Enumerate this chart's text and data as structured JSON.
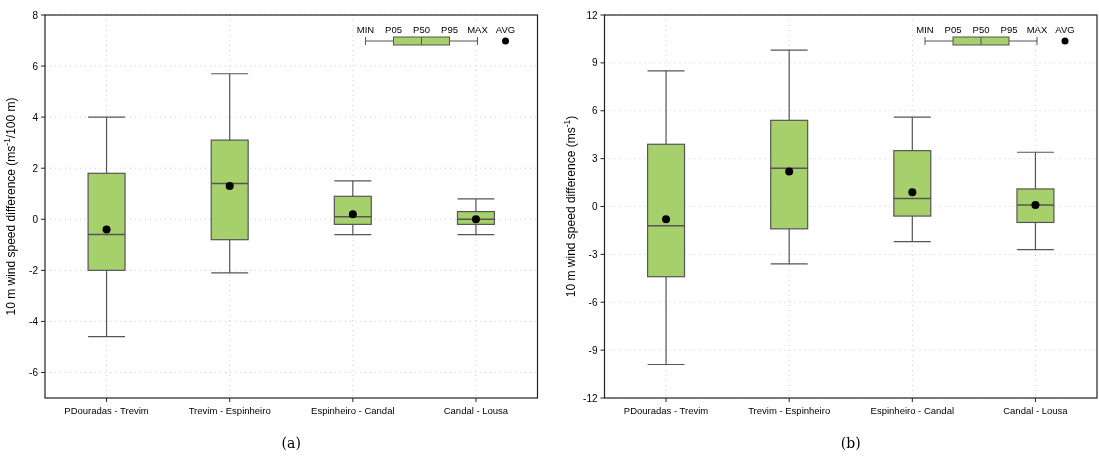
{
  "chart_data": [
    {
      "type": "box",
      "title": "(a)",
      "ylabel": "10 m wind speed difference (ms$^{-1}$/100 m)",
      "categories": [
        "PDouradas - Trevim",
        "Trevim - Espinheiro",
        "Espinheiro - Candal",
        "Candal - Lousa"
      ],
      "color": "#a6d06c",
      "ylim": [
        -7,
        8
      ],
      "yticks": [
        -6,
        -4,
        -2,
        0,
        2,
        4,
        6,
        8
      ],
      "grid": true,
      "annotations": [
        "MIN",
        "P05",
        "P50",
        "P95",
        "MAX",
        "AVG"
      ],
      "boxes": [
        {
          "low": -4.6,
          "q1": -2.0,
          "median": -0.6,
          "q3": 1.8,
          "high": 4.0,
          "mean": -0.4
        },
        {
          "low": -2.1,
          "q1": -0.8,
          "median": 1.4,
          "q3": 3.1,
          "high": 5.7,
          "mean": 1.3
        },
        {
          "low": -0.6,
          "q1": -0.2,
          "median": 0.1,
          "q3": 0.9,
          "high": 1.5,
          "mean": 0.2
        },
        {
          "low": -0.6,
          "q1": -0.2,
          "median": 0.0,
          "q3": 0.3,
          "high": 0.8,
          "mean": 0.0
        }
      ]
    },
    {
      "type": "box",
      "title": "(b)",
      "ylabel": "10 m wind speed difference (ms$^{-1}$)",
      "categories": [
        "PDouradas - Trevim",
        "Trevim - Espinheiro",
        "Espinheiro - Candal",
        "Candal - Lousa"
      ],
      "color": "#a6d06c",
      "ylim": [
        -12,
        12
      ],
      "yticks": [
        -12,
        -9,
        -6,
        -3,
        0,
        3,
        6,
        9,
        12
      ],
      "grid": true,
      "annotations": [
        "MIN",
        "P05",
        "P50",
        "P95",
        "MAX",
        "AVG"
      ],
      "boxes": [
        {
          "low": -9.9,
          "q1": -4.4,
          "median": -1.2,
          "q3": 3.9,
          "high": 8.5,
          "mean": -0.8
        },
        {
          "low": -3.6,
          "q1": -1.4,
          "median": 2.4,
          "q3": 5.4,
          "high": 9.8,
          "mean": 2.2
        },
        {
          "low": -2.2,
          "q1": -0.6,
          "median": 0.5,
          "q3": 3.5,
          "high": 5.6,
          "mean": 0.9
        },
        {
          "low": -2.7,
          "q1": -1.0,
          "median": 0.1,
          "q3": 1.1,
          "high": 3.4,
          "mean": 0.1
        }
      ]
    }
  ]
}
